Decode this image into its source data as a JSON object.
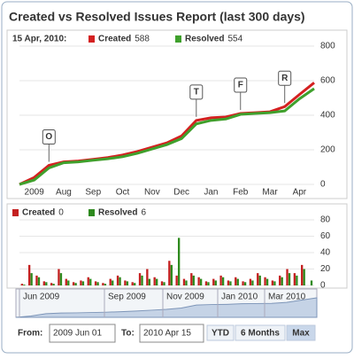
{
  "title": "Created vs Resolved Issues Report (last 300 days)",
  "chart_data": [
    {
      "type": "line",
      "header": "15 Apr, 2010:",
      "categories": [
        null,
        "2009",
        null,
        "Aug",
        null,
        "Sep",
        null,
        "Oct",
        null,
        "Nov",
        null,
        "Dec",
        null,
        "Jan",
        null,
        "Feb",
        null,
        "Mar",
        null,
        "Apr",
        null
      ],
      "series": [
        {
          "name": "Created",
          "color": "#d42020",
          "values": [
            0,
            40,
            110,
            130,
            135,
            145,
            155,
            170,
            190,
            215,
            240,
            280,
            370,
            385,
            390,
            410,
            415,
            420,
            450,
            520,
            588
          ]
        },
        {
          "name": "Resolved",
          "color": "#3fa02c",
          "values": [
            0,
            25,
            95,
            125,
            130,
            140,
            148,
            160,
            180,
            205,
            230,
            265,
            350,
            370,
            378,
            405,
            410,
            415,
            425,
            495,
            554
          ]
        }
      ],
      "annotations": [
        {
          "text": "O",
          "x": 2
        },
        {
          "text": "T",
          "x": 12
        },
        {
          "text": "F",
          "x": 15
        },
        {
          "text": "R",
          "x": 18
        }
      ],
      "ylim": [
        0,
        800
      ],
      "yticks": [
        0,
        200,
        400,
        600,
        800
      ]
    },
    {
      "type": "bar",
      "series": [
        {
          "name": "Created",
          "color": "#c42020",
          "values": [
            2,
            25,
            12,
            5,
            3,
            20,
            8,
            4,
            6,
            10,
            5,
            3,
            8,
            12,
            6,
            4,
            15,
            20,
            10,
            5,
            30,
            12,
            8,
            15,
            10,
            5,
            8,
            12,
            6,
            10,
            5,
            8,
            15,
            10,
            6,
            12,
            20,
            15,
            25,
            0
          ]
        },
        {
          "name": "Resolved",
          "color": "#2e8a1e",
          "values": [
            1,
            15,
            10,
            4,
            2,
            15,
            6,
            3,
            5,
            8,
            4,
            2,
            6,
            10,
            5,
            3,
            12,
            8,
            8,
            4,
            25,
            58,
            6,
            12,
            8,
            4,
            6,
            10,
            5,
            8,
            4,
            6,
            12,
            8,
            5,
            10,
            15,
            12,
            20,
            6
          ]
        }
      ],
      "ylim": [
        0,
        80
      ],
      "yticks": [
        0,
        20,
        40,
        60,
        80
      ]
    }
  ],
  "navigator": {
    "labels": [
      "Jun 2009",
      "Sep 2009",
      "Nov 2009",
      "Jan 2010",
      "Mar 2010"
    ]
  },
  "range_selector": {
    "from_label": "From:",
    "from": "2009 Jun 01",
    "to_label": "To:",
    "to": "2010 Apr 15",
    "buttons": [
      "YTD",
      "6 Months",
      "Max"
    ]
  }
}
